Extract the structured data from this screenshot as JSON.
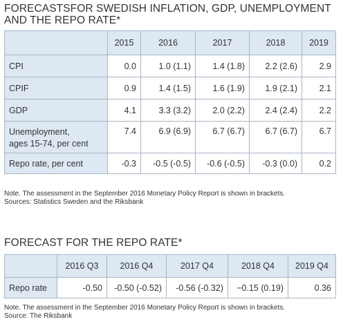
{
  "forecasts": {
    "title_line1": "FORECASTSFOR SWEDISH INFLATION, GDP, UNEMPLOYMENT",
    "title_line2": "AND THE REPO RATE*",
    "years": [
      "2015",
      "2016",
      "2017",
      "2018",
      "2019"
    ],
    "rows": [
      {
        "label": "CPI",
        "values": [
          "0.0",
          "1.0 (1.1)",
          "1.4 (1.8)",
          "2.2 (2.6)",
          "2.9"
        ]
      },
      {
        "label": "CPIF",
        "values": [
          "0.9",
          "1.4 (1.5)",
          "1.6 (1.9)",
          "1.9 (2.1)",
          "2.1"
        ]
      },
      {
        "label": "GDP",
        "values": [
          "4.1",
          "3.3 (3.2)",
          "2.0 (2.2)",
          "2.4 (2.4)",
          "2.2"
        ]
      },
      {
        "label_line1": "Unemployment,",
        "label_line2": "ages 15-74, per cent",
        "values": [
          "7.4",
          "6.9 (6.9)",
          "6.7 (6.7)",
          "6.7 (6.7)",
          "6.7"
        ]
      },
      {
        "label": "Repo rate, per cent",
        "values": [
          "-0.3",
          "-0.5 (-0.5)",
          "-0.6 (-0.5)",
          "-0.3 (0.0)",
          "0.2"
        ]
      }
    ],
    "note": "Note. The assessment in the September 2016 Monetary Policy Report is shown in brackets.",
    "sources": "Sources: Statistics Sweden and the Riksbank"
  },
  "repo_forecast": {
    "title": "FORECAST FOR THE REPO RATE*",
    "periods": [
      "2016 Q3",
      "2016 Q4",
      "2017 Q4",
      "2018 Q4",
      "2019 Q4"
    ],
    "row_label": "Repo rate",
    "values": [
      "-0.50",
      "-0.50 (-0.52)",
      "-0.56 (-0.32)",
      "−0.15 (0.19)",
      "0.36"
    ],
    "note": "Note. The assessment in the September 2016 Monetary Policy Report is shown in brackets.",
    "source": "Source: The Riksbank"
  }
}
